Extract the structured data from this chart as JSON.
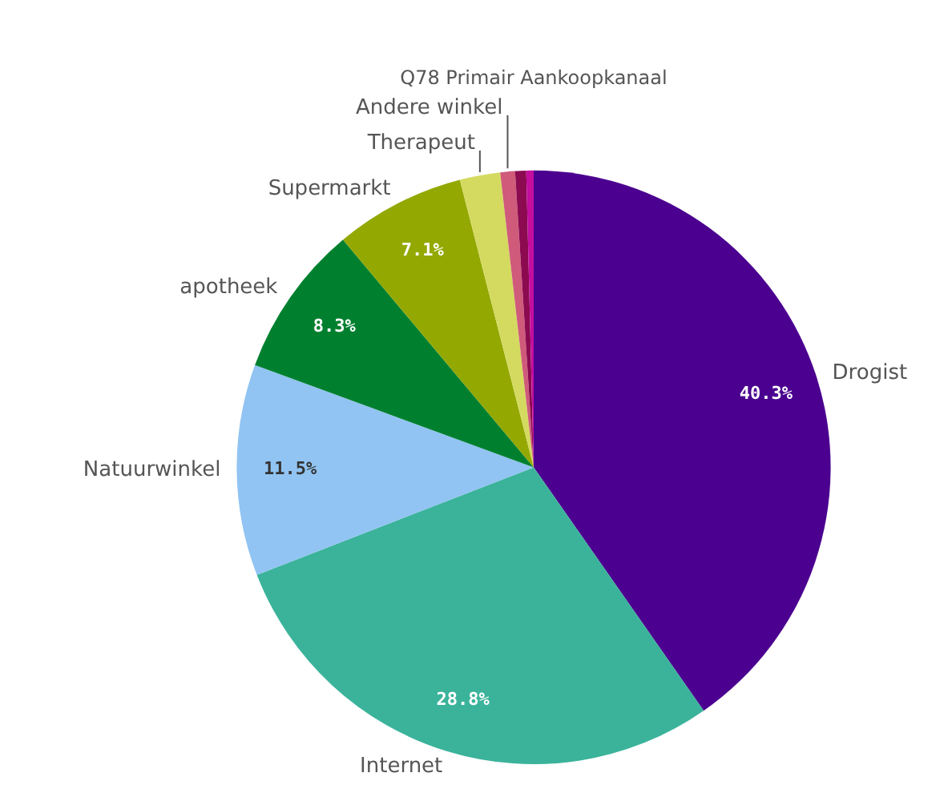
{
  "chart_data": {
    "type": "pie",
    "title": "Q78 Primair Aankoopkanaal",
    "categories": [
      "Drogist",
      "Internet",
      "Natuurwinkel",
      "apotheek",
      "Supermarkt",
      "Therapeut",
      "Andere winkel",
      null,
      null
    ],
    "values": [
      40.3,
      28.8,
      11.5,
      8.3,
      7.1,
      2.2,
      0.8,
      0.6,
      0.4
    ],
    "colors": [
      "#4b0090",
      "#3bb39b",
      "#91c4f2",
      "#00802f",
      "#93a800",
      "#d4da60",
      "#cf5a7a",
      "#8b0a50",
      "#c30e9e"
    ],
    "value_labels": [
      "40.3%",
      "28.8%",
      "11.5%",
      "8.3%",
      "7.1%",
      null,
      null,
      null,
      null
    ],
    "legend": false
  }
}
